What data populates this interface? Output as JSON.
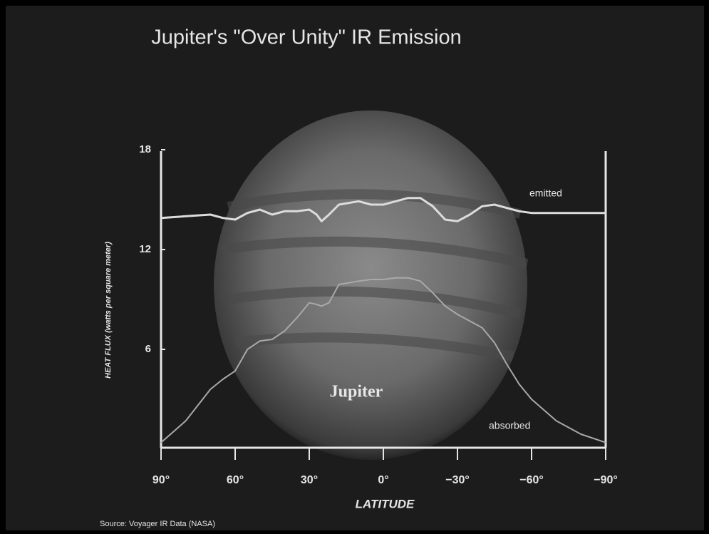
{
  "chart_data": {
    "type": "line",
    "title": "Jupiter's \"Over Unity\" IR Emission",
    "y_label": "HEAT FLUX (watts per square meter)",
    "x_label": "LATITUDE",
    "annotation": "Jupiter",
    "source": "Source: Voyager IR Data (NASA)",
    "x": [
      90,
      80,
      70,
      65,
      60,
      55,
      50,
      45,
      40,
      35,
      30,
      27,
      25,
      22,
      18,
      10,
      5,
      0,
      -5,
      -10,
      -15,
      -20,
      -25,
      -30,
      -35,
      -40,
      -45,
      -50,
      -55,
      -60,
      -70,
      -80,
      -90
    ],
    "series": [
      {
        "name": "emitted",
        "color": "#dcdcdc",
        "values": [
          13.9,
          14.0,
          14.1,
          13.9,
          13.8,
          14.2,
          14.4,
          14.1,
          14.3,
          14.3,
          14.4,
          14.1,
          13.7,
          14.1,
          14.7,
          14.9,
          14.7,
          14.7,
          14.9,
          15.1,
          15.1,
          14.6,
          13.8,
          13.7,
          14.1,
          14.6,
          14.7,
          14.5,
          14.3,
          14.2,
          14.2,
          14.2,
          14.2
        ]
      },
      {
        "name": "absorbed",
        "color": "#a9a9a9",
        "values": [
          0.4,
          1.7,
          3.6,
          4.2,
          4.7,
          6.0,
          6.5,
          6.6,
          7.1,
          7.9,
          8.8,
          8.7,
          8.6,
          8.8,
          9.9,
          10.1,
          10.2,
          10.2,
          10.3,
          10.3,
          10.1,
          9.4,
          8.6,
          8.1,
          7.7,
          7.3,
          6.4,
          5.1,
          3.9,
          3.0,
          1.7,
          0.9,
          0.4
        ]
      }
    ],
    "xlim": [
      90,
      -90
    ],
    "xticks": [
      {
        "value": 90,
        "label": "90°"
      },
      {
        "value": 60,
        "label": "60°"
      },
      {
        "value": 30,
        "label": "30°"
      },
      {
        "value": 0,
        "label": "0°"
      },
      {
        "value": -30,
        "label": "−30°"
      },
      {
        "value": -60,
        "label": "−60°"
      },
      {
        "value": -90,
        "label": "−90°"
      }
    ],
    "ylim": [
      0,
      18
    ],
    "yticks": [
      6,
      12,
      18
    ]
  }
}
